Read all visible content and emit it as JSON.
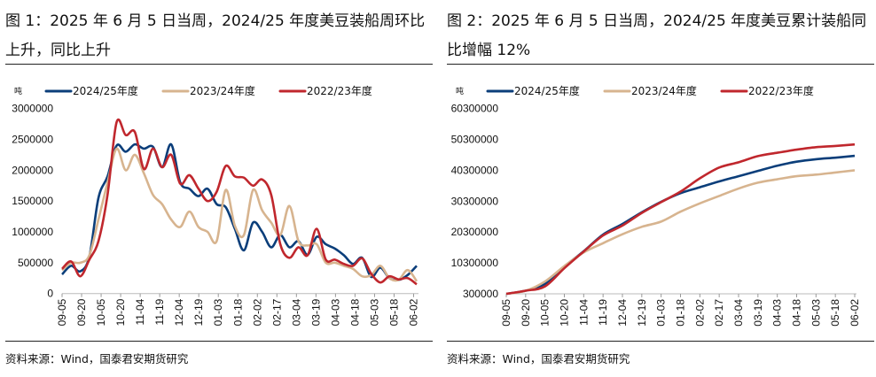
{
  "colors": {
    "s2425": "#0b3e7a",
    "s2324": "#d7b48f",
    "s2223": "#c0272d"
  },
  "chart_data": [
    {
      "type": "line",
      "title": "图 1：2025 年 6 月 5 日当周，2024/25 年度美豆装船周环比上升，同比上升",
      "ylabel": "吨",
      "ylim": [
        0,
        3000000
      ],
      "yticks": [
        0,
        500000,
        1000000,
        1500000,
        2000000,
        2500000,
        3000000
      ],
      "ytick_labels": [
        "0",
        "500000",
        "1000000",
        "1500000",
        "2000000",
        "2500000",
        "3000000"
      ],
      "x_tick_labels": [
        "09-05",
        "09-20",
        "10-05",
        "10-20",
        "11-04",
        "11-19",
        "12-04",
        "12-19",
        "01-03",
        "01-18",
        "02-02",
        "02-17",
        "03-04",
        "03-19",
        "04-03",
        "04-18",
        "05-03",
        "05-18",
        "06-02"
      ],
      "x_note": "weekly values evenly spaced from 09-05 to 06-02",
      "grid": false,
      "legend": "top",
      "series": [
        {
          "name": "2024/25年度",
          "color_key": "s2425",
          "values": [
            310000,
            450000,
            360000,
            600000,
            1550000,
            1900000,
            2400000,
            2300000,
            2420000,
            2350000,
            2380000,
            2050000,
            2420000,
            1800000,
            1700000,
            1580000,
            1700000,
            1450000,
            1400000,
            1050000,
            700000,
            1150000,
            1000000,
            750000,
            950000,
            750000,
            850000,
            630000,
            920000,
            800000,
            730000,
            620000,
            480000,
            580000,
            270000,
            420000,
            250000,
            220000,
            300000,
            450000
          ]
        },
        {
          "name": "2023/24年度",
          "color_key": "s2324",
          "values": [
            380000,
            500000,
            500000,
            620000,
            1200000,
            1800000,
            2350000,
            2000000,
            2250000,
            1950000,
            1600000,
            1450000,
            1200000,
            1080000,
            1330000,
            1080000,
            1000000,
            850000,
            1680000,
            1100000,
            950000,
            1680000,
            1350000,
            1150000,
            950000,
            1420000,
            850000,
            780000,
            800000,
            500000,
            500000,
            450000,
            400000,
            280000,
            300000,
            450000,
            250000,
            220000,
            380000,
            200000
          ]
        },
        {
          "name": "2022/23年度",
          "color_key": "s2223",
          "values": [
            400000,
            520000,
            280000,
            550000,
            850000,
            1600000,
            2780000,
            2570000,
            2620000,
            2020000,
            2350000,
            2050000,
            2250000,
            1780000,
            1920000,
            1700000,
            1500000,
            1650000,
            2070000,
            1900000,
            1880000,
            1750000,
            1850000,
            1600000,
            800000,
            580000,
            750000,
            620000,
            1050000,
            550000,
            550000,
            480000,
            450000,
            570000,
            320000,
            180000,
            280000,
            230000,
            250000,
            150000
          ]
        }
      ]
    },
    {
      "type": "line",
      "title": "图 2：2025 年 6 月 5 日当周，2024/25 年度美豆累计装船同比增幅 12%",
      "ylabel": "吨",
      "ylim": [
        300000,
        60300000
      ],
      "yticks": [
        300000,
        10300000,
        20300000,
        30300000,
        40300000,
        50300000,
        60300000
      ],
      "ytick_labels": [
        "300000",
        "10300000",
        "20300000",
        "30300000",
        "40300000",
        "50300000",
        "60300000"
      ],
      "x_tick_labels": [
        "09-05",
        "09-20",
        "10-05",
        "10-20",
        "11-04",
        "11-19",
        "12-04",
        "12-19",
        "01-03",
        "01-18",
        "02-02",
        "02-17",
        "03-04",
        "03-19",
        "04-03",
        "04-18",
        "05-03",
        "05-18",
        "06-02"
      ],
      "grid": false,
      "legend": "top",
      "series": [
        {
          "name": "2024/25年度",
          "color_key": "s2425",
          "values": [
            300000,
            1300000,
            3500000,
            9100000,
            14100000,
            19500000,
            22900000,
            26700000,
            30100000,
            32900000,
            34800000,
            36700000,
            38400000,
            40100000,
            41800000,
            43100000,
            43900000,
            44400000,
            45000000
          ]
        },
        {
          "name": "2023/24年度",
          "color_key": "s2324",
          "values": [
            300000,
            1300000,
            4300000,
            9300000,
            13700000,
            16700000,
            19600000,
            22000000,
            23700000,
            26900000,
            29600000,
            32000000,
            34400000,
            36300000,
            37400000,
            38400000,
            38900000,
            39600000,
            40300000
          ]
        },
        {
          "name": "2022/23年度",
          "color_key": "s2223",
          "values": [
            300000,
            1300000,
            2700000,
            8600000,
            14000000,
            19200000,
            22400000,
            26500000,
            30000000,
            33400000,
            37700000,
            41200000,
            42900000,
            44900000,
            46000000,
            47000000,
            47800000,
            48200000,
            48700000
          ]
        }
      ]
    }
  ],
  "source": "资料来源：Wind，国泰君安期货研究"
}
